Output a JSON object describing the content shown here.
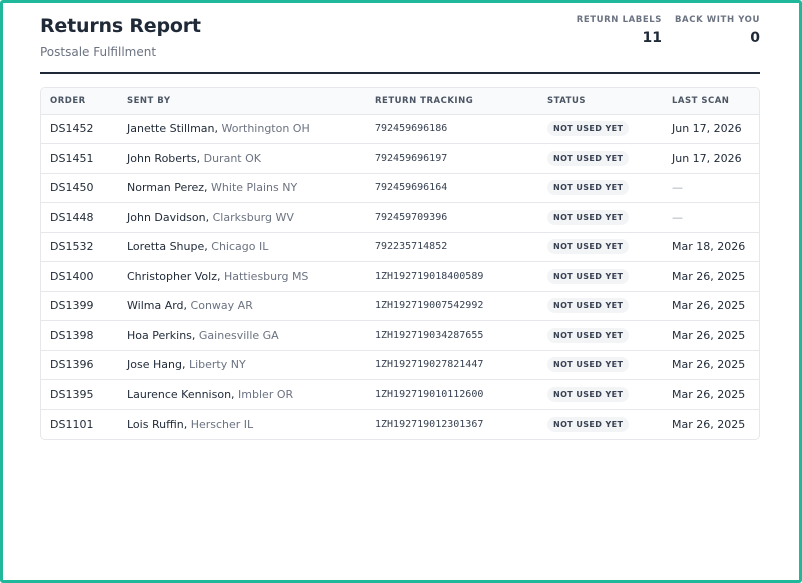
{
  "header": {
    "title": "Returns Report",
    "subtitle": "Postsale Fulfillment",
    "stats": [
      {
        "label": "RETURN LABELS",
        "value": "11"
      },
      {
        "label": "BACK WITH YOU",
        "value": "0"
      }
    ]
  },
  "table": {
    "columns": [
      "ORDER",
      "SENT BY",
      "RETURN TRACKING",
      "STATUS",
      "LAST SCAN"
    ],
    "rows": [
      {
        "order": "DS1452",
        "name": "Janette Stillman",
        "location": "Worthington OH",
        "tracking": "792459696186",
        "status": "NOT USED YET",
        "last_scan": "Jun 17, 2026"
      },
      {
        "order": "DS1451",
        "name": "John Roberts",
        "location": "Durant OK",
        "tracking": "792459696197",
        "status": "NOT USED YET",
        "last_scan": "Jun 17, 2026"
      },
      {
        "order": "DS1450",
        "name": "Norman Perez",
        "location": "White Plains NY",
        "tracking": "792459696164",
        "status": "NOT USED YET",
        "last_scan": "—"
      },
      {
        "order": "DS1448",
        "name": "John Davidson",
        "location": "Clarksburg WV",
        "tracking": "792459709396",
        "status": "NOT USED YET",
        "last_scan": "—"
      },
      {
        "order": "DS1532",
        "name": "Loretta Shupe",
        "location": "Chicago IL",
        "tracking": "792235714852",
        "status": "NOT USED YET",
        "last_scan": "Mar 18, 2026"
      },
      {
        "order": "DS1400",
        "name": "Christopher Volz",
        "location": "Hattiesburg MS",
        "tracking": "1ZH192719018400589",
        "status": "NOT USED YET",
        "last_scan": "Mar 26, 2025"
      },
      {
        "order": "DS1399",
        "name": "Wilma Ard",
        "location": "Conway AR",
        "tracking": "1ZH192719007542992",
        "status": "NOT USED YET",
        "last_scan": "Mar 26, 2025"
      },
      {
        "order": "DS1398",
        "name": "Hoa Perkins",
        "location": "Gainesville GA",
        "tracking": "1ZH192719034287655",
        "status": "NOT USED YET",
        "last_scan": "Mar 26, 2025"
      },
      {
        "order": "DS1396",
        "name": "Jose Hang",
        "location": "Liberty NY",
        "tracking": "1ZH192719027821447",
        "status": "NOT USED YET",
        "last_scan": "Mar 26, 2025"
      },
      {
        "order": "DS1395",
        "name": "Laurence Kennison",
        "location": "Imbler OR",
        "tracking": "1ZH192719010112600",
        "status": "NOT USED YET",
        "last_scan": "Mar 26, 2025"
      },
      {
        "order": "DS1101",
        "name": "Lois Ruffin",
        "location": "Herscher IL",
        "tracking": "1ZH192719012301367",
        "status": "NOT USED YET",
        "last_scan": "Mar 26, 2025"
      }
    ]
  },
  "colors": {
    "frame_border": "#1fb89a",
    "heading_text": "#1f2937",
    "muted_text": "#6b7280",
    "badge_bg": "#f3f4f6"
  }
}
